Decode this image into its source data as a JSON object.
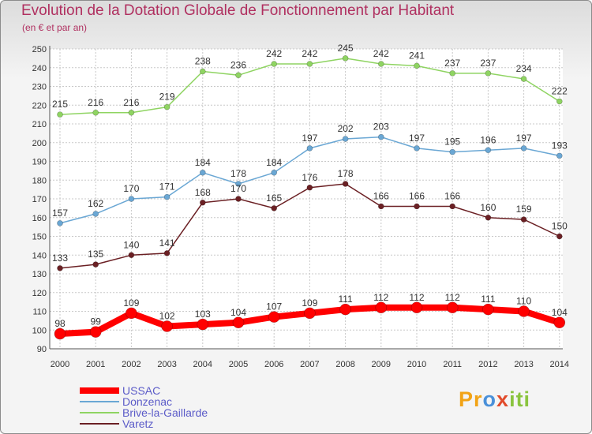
{
  "title": "Evolution de la Dotation Globale de Fonctionnement par Habitant",
  "subtitle": "(en € et par an)",
  "logo_text": "Proxiti",
  "colors": {
    "ussac": "#ff0000",
    "donzenac": "#6aa7d4",
    "brive": "#8fd462",
    "varetz": "#6b2024",
    "axis_labels": "#333333",
    "grid": "#c8c8c8",
    "title": "#b03060",
    "legend_text": "#5b5bc8"
  },
  "chart_data": {
    "type": "line",
    "title": "Evolution de la Dotation Globale de Fonctionnement par Habitant",
    "subtitle": "(en € et par an)",
    "xlabel": "",
    "ylabel": "",
    "x": [
      "2000",
      "2001",
      "2002",
      "2003",
      "2004",
      "2005",
      "2006",
      "2007",
      "2008",
      "2009",
      "2010",
      "2011",
      "2012",
      "2013",
      "2014"
    ],
    "ylim": [
      90,
      250
    ],
    "yticks": [
      90,
      100,
      110,
      120,
      130,
      140,
      150,
      160,
      170,
      180,
      190,
      200,
      210,
      220,
      230,
      240,
      250
    ],
    "grid": true,
    "legend_position": "bottom-left",
    "series": [
      {
        "key": "ussac",
        "name": "USSAC",
        "values": [
          98,
          99,
          109,
          102,
          103,
          104,
          107,
          109,
          111,
          112,
          112,
          112,
          111,
          110,
          104
        ]
      },
      {
        "key": "donzenac",
        "name": "Donzenac",
        "values": [
          157,
          162,
          170,
          171,
          184,
          178,
          184,
          197,
          202,
          203,
          197,
          195,
          196,
          197,
          193
        ]
      },
      {
        "key": "brive",
        "name": "Brive-la-Gaillarde",
        "values": [
          215,
          216,
          216,
          219,
          238,
          236,
          242,
          242,
          245,
          242,
          241,
          237,
          237,
          234,
          222
        ]
      },
      {
        "key": "varetz",
        "name": "Varetz",
        "values": [
          133,
          135,
          140,
          141,
          168,
          170,
          165,
          176,
          178,
          166,
          166,
          166,
          160,
          159,
          150
        ]
      }
    ]
  }
}
